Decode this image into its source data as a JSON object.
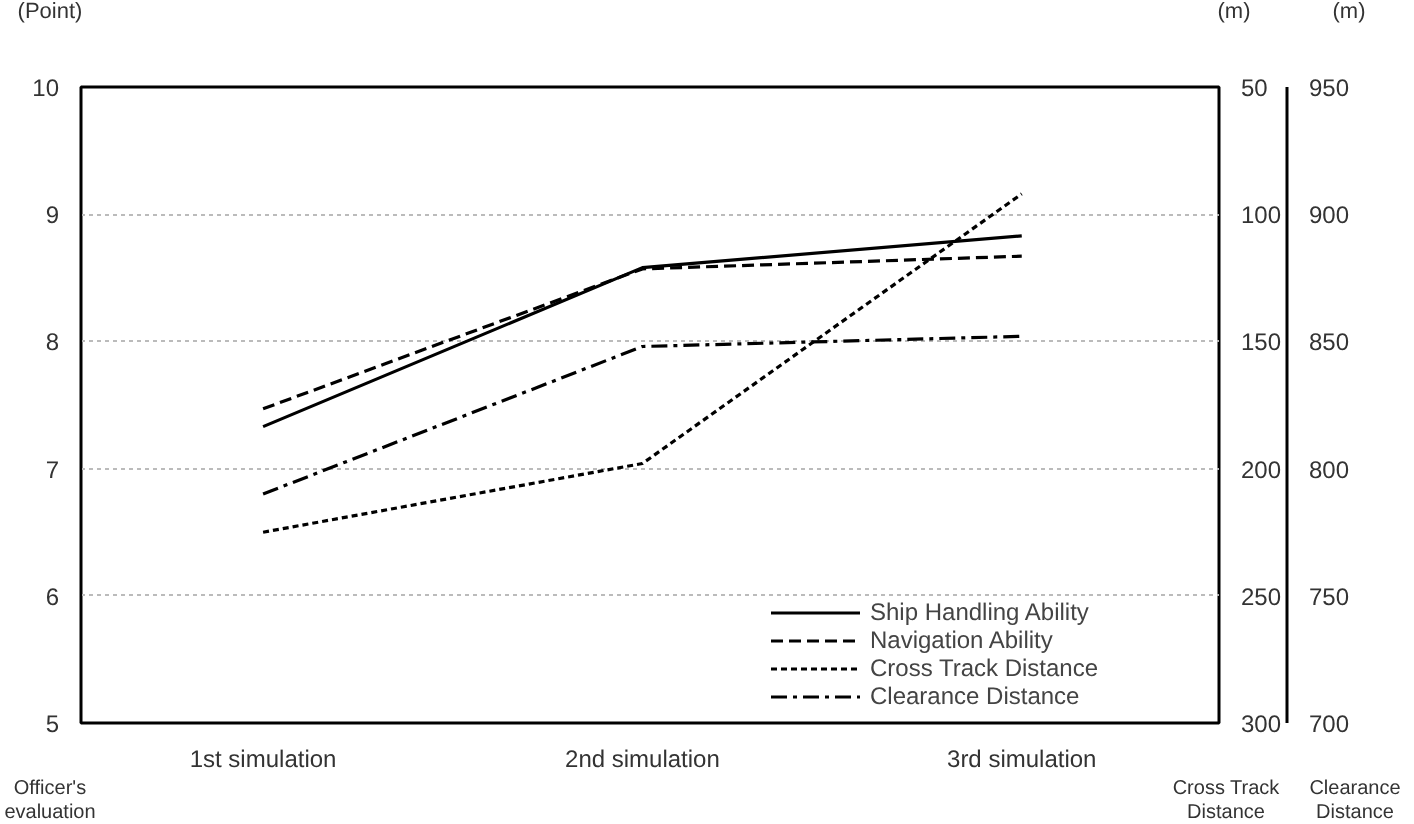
{
  "chart_data": {
    "type": "line",
    "categories": [
      "1st simulation",
      "2nd simulation",
      "3rd simulation"
    ],
    "ylabel": "Officer's evaluation",
    "y2label": "Cross Track Distance",
    "y3label": "Clearance Distance",
    "annotations": [
      "(Point)",
      "(m)",
      "(m)"
    ],
    "ylim": [
      5,
      10
    ],
    "yticks": [
      5,
      6,
      7,
      8,
      9,
      10
    ],
    "y2lim": [
      300,
      50
    ],
    "y2ticks": [
      50,
      100,
      150,
      200,
      250,
      300
    ],
    "y3lim": [
      700,
      950
    ],
    "y3ticks": [
      700,
      750,
      800,
      850,
      900,
      950
    ],
    "grid": "y",
    "legend": "bottom right",
    "marker": "none",
    "series": [
      {
        "name": "Ship Handling Ability",
        "color": "#000000",
        "line_style": "solid",
        "values": [
          7.33,
          8.58,
          8.83
        ]
      },
      {
        "name": "Navigation Ability",
        "color": "#000000",
        "line_style": "dashed",
        "values": [
          7.47,
          8.57,
          8.67
        ]
      },
      {
        "name": "Cross Track Distance",
        "color": "#000000",
        "line_style": "dotted",
        "axis": "y2",
        "values": [
          225,
          198,
          92
        ]
      },
      {
        "name": "Clearance Distance",
        "color": "#000000",
        "line_style": "dashdot",
        "axis": "y3",
        "values": [
          790,
          848,
          852
        ]
      }
    ]
  }
}
